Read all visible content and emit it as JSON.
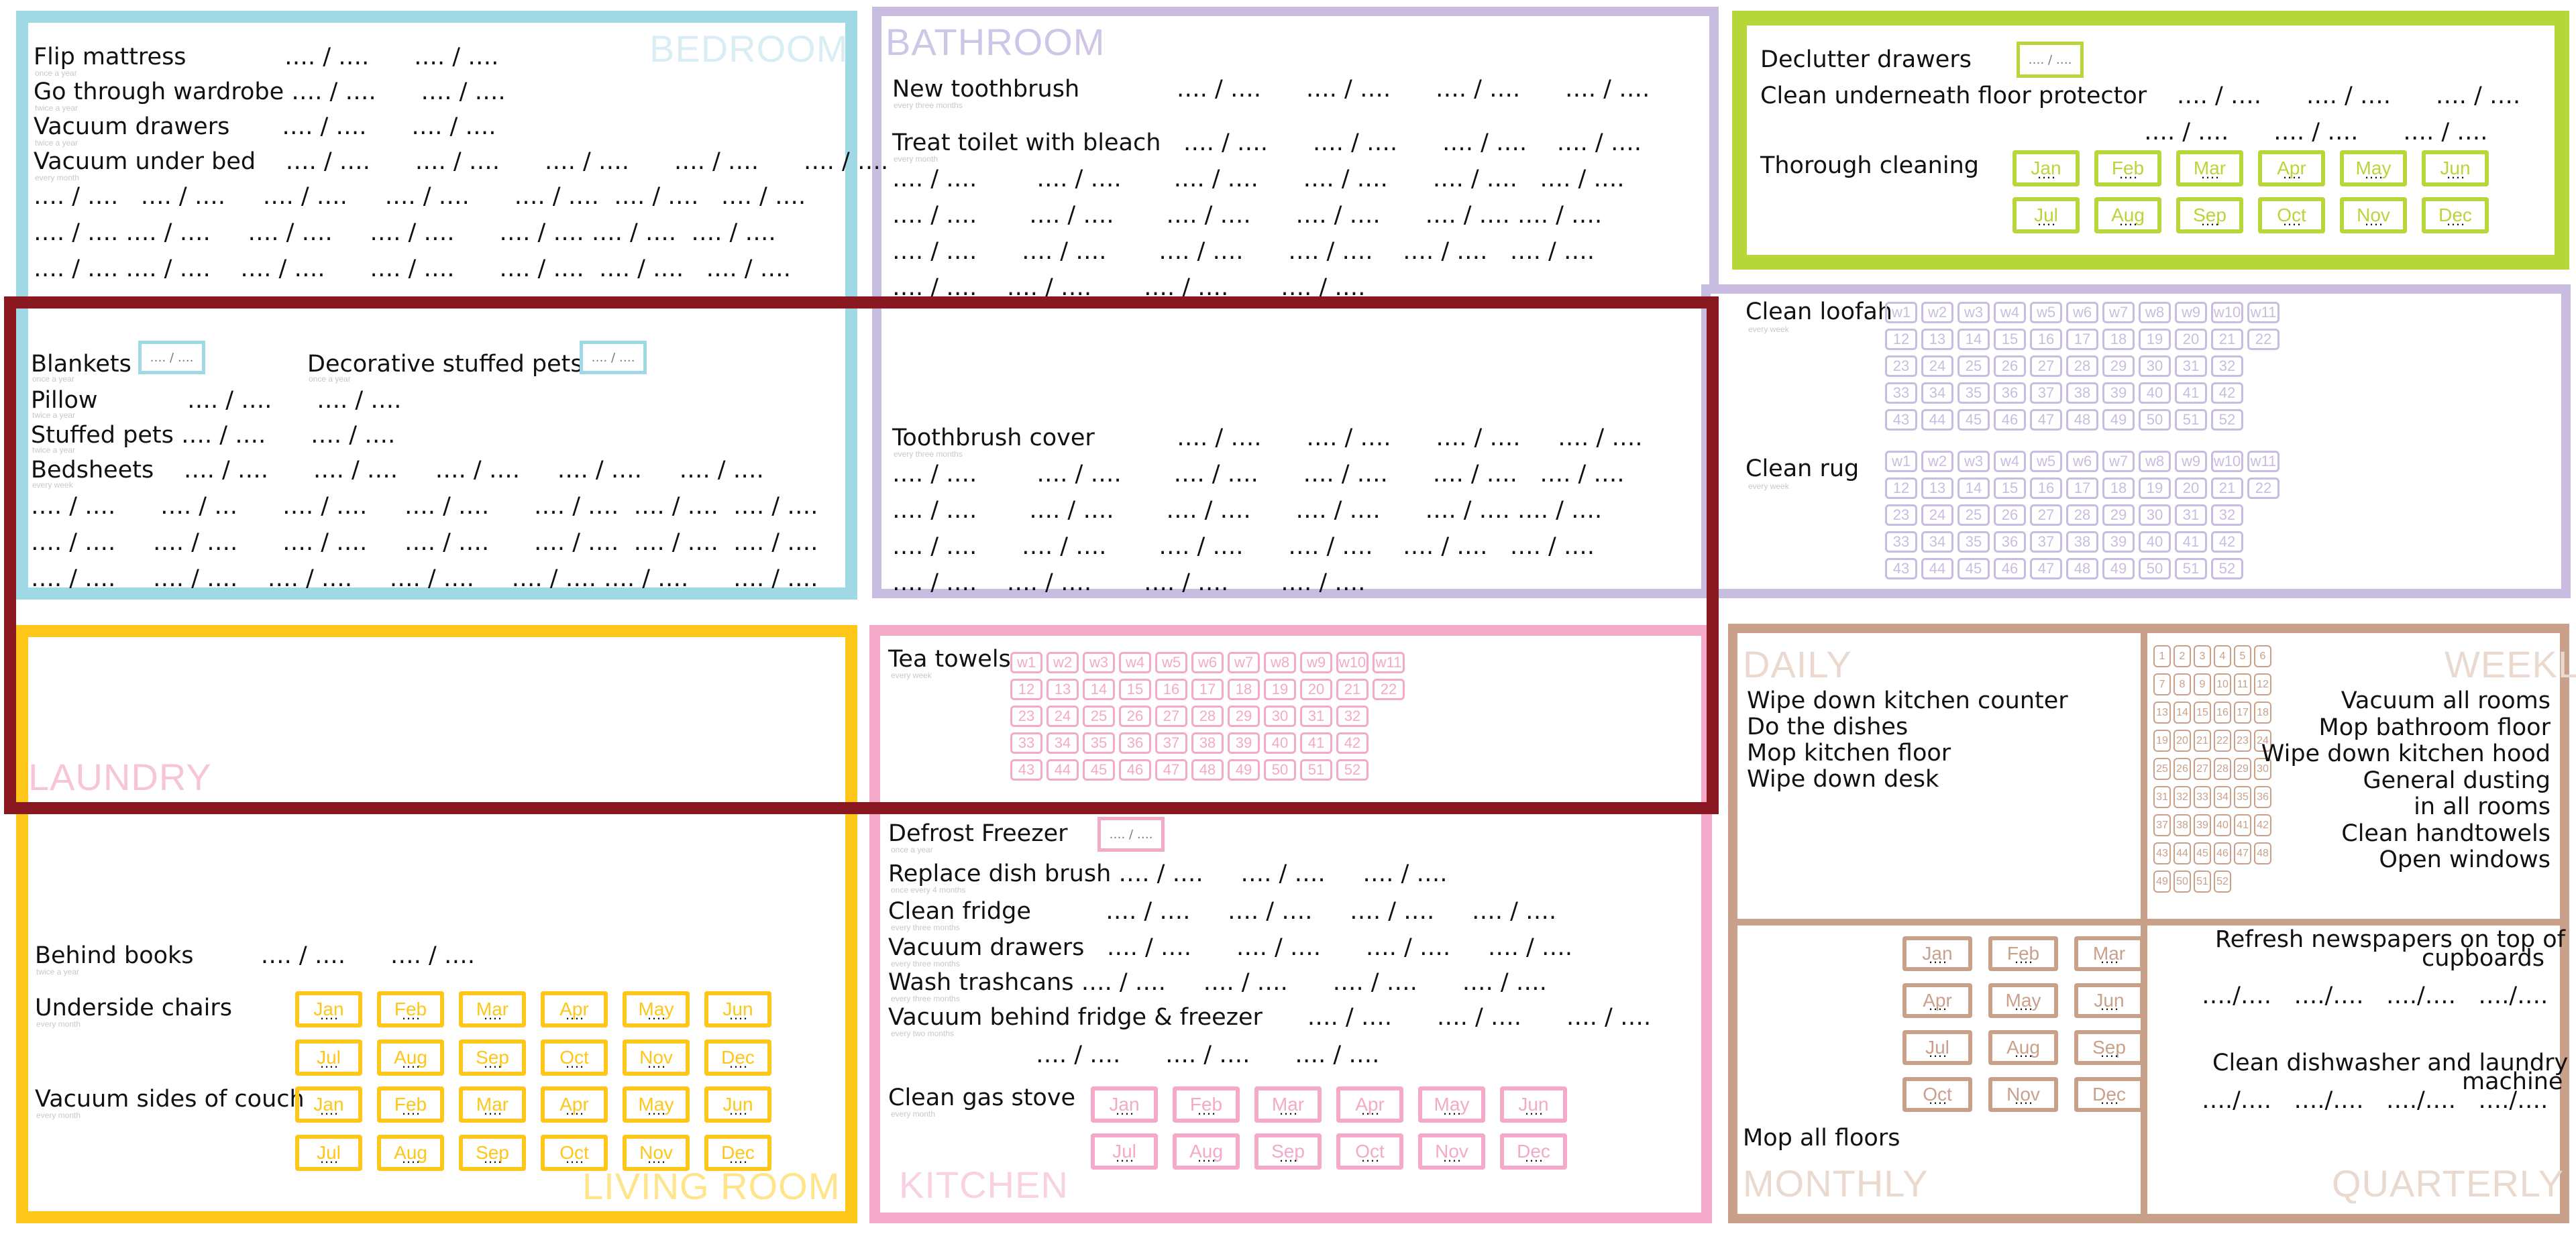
{
  "colors": {
    "bedroom": "#9fd9e6",
    "bathroom": "#c8bde0",
    "bathroom_text": "#cfc5e6",
    "green": "#b6d63a",
    "red": "#8a1820",
    "laundry": "#ffc61a",
    "laundry_text": "#f7c6d6",
    "kitchen": "#f4a9c8",
    "brown": "#c9a08a",
    "brown_text": "#ead9cf"
  },
  "bedroom": {
    "title": "BEDROOM",
    "flip": "Flip mattress",
    "flip_s": "once a year",
    "flip_v": "…. / ….      …. / ….",
    "wardrobe": "Go through wardrobe …. / ….      …. / ….",
    "wardrobe_s": "twice a year",
    "vacdraw": "Vacuum drawers       …. / ….      …. / ….",
    "vacdraw_s": "twice a year",
    "vacbed": "Vacuum under bed    …. / ….      …. / ….      …. / ….      …. / ….      …. / ….",
    "vacbed_s": "every month",
    "vb1": "…. / ….   …. / ….     …. / ….     …. / ….      …. / ….  …. / ….   …. / ….",
    "vb2": "…. / …. …. / ….     …. / ….     …. / ….      …. / …. …. / ….  …. / ….",
    "vb3": "…. / …. …. / ….    …. / ….      …. / ….      …. / ….  …. / ….   …. / ….",
    "blankets": "Blankets",
    "blankets_s": "once a year",
    "blankets_box": "…. / ….",
    "decor": "Decorative stuffed pets",
    "decor_s": "once a year",
    "decor_box": "…. / ….",
    "pillow": "Pillow            …. / ….      …. / ….",
    "pillow_s": "twice a year",
    "stuffed": "Stuffed pets …. / ….      …. / ….",
    "stuffed_s": "twice a year",
    "bedsheets": "Bedsheets    …. / ….      …. / ….     …. / ….     …. / ….     …. / ….",
    "bedsheets_s": "every week",
    "bs1": "…. / ….      …. / …      …. / ….     …. / ….      …. / ….  …. / ….  …. / ….",
    "bs2": "…. / ….     …. / ….      …. / ….     …. / ….      …. / ….  …. / ….  …. / ….",
    "bs3": "…. / ….     …. / ….    …. / ….     …. / ….     …. / …. …. / ….      …. / …."
  },
  "bathroom": {
    "title": "BATHROOM",
    "toothbrush": "New toothbrush             …. / ….      …. / ….      …. / ….      …. / ….",
    "toothbrush_s": "every three months",
    "toilet": "Treat toilet with bleach   …. / ….      …. / ….      …. / ….    …. / ….",
    "toilet_s": "every month",
    "t1": "…. / ….        …. / ….       …. / ….      …. / ….      …. / ….   …. / ….",
    "t2": "…. / ….       …. / ….       …. / ….      …. / ….      …. / …. …. / ….",
    "t3": "…. / ….      …. / ….       …. / ….      …. / ….    …. / ….   …. / ….",
    "t4": "…. / ….    …. / ….       …. / ….       …. / ….",
    "cover": "Toothbrush cover           …. / ….      …. / ….      …. / ….     …. / ….",
    "cover_s": "every three months",
    "c1": "…. / ….        …. / ….       …. / ….      …. / ….      …. / ….   …. / ….",
    "c2": "…. / ….       …. / ….       …. / ….      …. / ….      …. / …. …. / ….",
    "c3": "…. / ….      …. / ….       …. / ….      …. / ….    …. / ….   …. / ….",
    "c4": "…. / ….    …. / ….       …. / ….       …. / …."
  },
  "green": {
    "declutter": "Declutter drawers",
    "declutter_box": "…. / ….",
    "underneath": "Clean underneath floor protector    …. / ….      …. / ….      …. / ….",
    "underneath2": "…. / ….      …. / ….      …. / ….",
    "thorough": "Thorough cleaning"
  },
  "loofah": {
    "label": "Clean loofah",
    "sub": "every week",
    "rug": "Clean rug",
    "rug_sub": "every week"
  },
  "laundry": {
    "title": "LAUNDRY"
  },
  "living": {
    "title": "LIVING ROOM",
    "books": "Behind books         …. / ….      …. / ….",
    "books_s": "twice a year",
    "chairs": "Underside chairs",
    "chairs_s": "every month",
    "couch": "Vacuum sides of couch",
    "couch_s": "every month"
  },
  "kitchen": {
    "title": "KITCHEN",
    "towels": "Tea towels",
    "towels_s": "every week",
    "defrost": "Defrost Freezer",
    "defrost_s": "once a year",
    "defrost_box": "…. / ….",
    "dishbrush": "Replace dish brush …. / ….     …. / ….     …. / ….",
    "dishbrush_s": "once every 4 months",
    "fridge": "Clean fridge          …. / ….     …. / ….     …. / ….     …. / ….",
    "fridge_s": "every three months",
    "vacdraw": "Vacuum drawers   …. / ….      …. / ….      …. / ….     …. / ….",
    "vacdraw_s": "every three months",
    "trash": "Wash trashcans …. / ….     …. / ….      …. / ….      …. / ….",
    "trash_s": "every three months",
    "behind": "Vacuum behind fridge & freezer      …. / ….      …. / ….      …. / ….",
    "behind_s": "every two months",
    "behind2": "…. / ….      …. / ….      …. / ….",
    "stove": "Clean gas stove",
    "stove_s": "every month"
  },
  "daily": {
    "title": "DAILY",
    "items": [
      "Wipe down kitchen counter",
      "Do the dishes",
      "Mop kitchen floor",
      "Wipe down desk"
    ]
  },
  "weekly": {
    "title": "WEEKLY",
    "items": [
      "Vacuum all rooms",
      "Mop bathroom floor",
      "Wipe down kitchen hood",
      "General dusting",
      "in all rooms",
      "Clean handtowels",
      "Open windows"
    ]
  },
  "monthly": {
    "title": "MONTHLY",
    "mop": "Mop all floors"
  },
  "quarterly": {
    "title": "QUARTERLY",
    "news": "Refresh newspapers on top of",
    "news2": "cupboards",
    "news_v": "…./….   …./….   …./….   …./….",
    "dish": "Clean dishwasher and laundry",
    "dish2": "machine",
    "dish_v": "…./….   …./….   …./….   …./…."
  },
  "months": [
    "Jan",
    "Feb",
    "Mar",
    "Apr",
    "May",
    "Jun",
    "Jul",
    "Aug",
    "Sep",
    "Oct",
    "Nov",
    "Dec"
  ],
  "weeks_first": [
    "w1",
    "w2",
    "w3",
    "w4",
    "w5",
    "w6",
    "w7",
    "w8",
    "w9",
    "w10",
    "w11"
  ],
  "weeks_rows": [
    [
      "12",
      "13",
      "14",
      "15",
      "16",
      "17",
      "18",
      "19",
      "20",
      "21",
      "22"
    ],
    [
      "23",
      "24",
      "25",
      "26",
      "27",
      "28",
      "29",
      "30",
      "31",
      "32"
    ],
    [
      "33",
      "34",
      "35",
      "36",
      "37",
      "38",
      "39",
      "40",
      "41",
      "42"
    ],
    [
      "43",
      "44",
      "45",
      "46",
      "47",
      "48",
      "49",
      "50",
      "51",
      "52"
    ]
  ]
}
